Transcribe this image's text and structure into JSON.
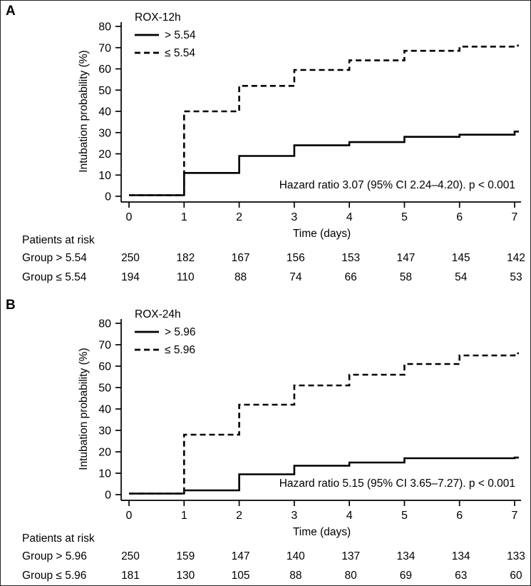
{
  "figure": {
    "background": "#ffffff",
    "ink_color": "#000000",
    "border_color": "#262626",
    "panels": [
      {
        "letter": "A",
        "chart_index": 0
      },
      {
        "letter": "B",
        "chart_index": 1
      }
    ]
  },
  "chart_data": [
    {
      "type": "line",
      "subtype": "step-cumulative-incidence",
      "legend_title": "ROX-12h",
      "xlabel": "Time (days)",
      "ylabel": "Intubation probability (%)",
      "xlim": [
        0,
        7.1
      ],
      "ylim": [
        0,
        80
      ],
      "xticks": [
        0,
        1,
        2,
        3,
        4,
        5,
        6,
        7
      ],
      "yticks": [
        0,
        10,
        20,
        30,
        40,
        50,
        60,
        70,
        80
      ],
      "grid": false,
      "legend_position": "top-left",
      "series": [
        {
          "name": "> 5.54",
          "line_style": "solid",
          "x": [
            0,
            1,
            2,
            3,
            4,
            5,
            6,
            7
          ],
          "y": [
            0.5,
            11,
            19,
            24,
            25.5,
            28,
            29,
            30.5
          ]
        },
        {
          "name": "≤ 5.54",
          "line_style": "dashed",
          "x": [
            0,
            1,
            2,
            3,
            4,
            5,
            6,
            7
          ],
          "y": [
            0.5,
            40,
            52,
            59.5,
            64,
            68.5,
            70.5,
            71
          ]
        }
      ],
      "annotation": "Hazard ratio 3.07 (95% CI 2.24–4.20). p < 0.001",
      "patients_at_risk": {
        "header": "Patients at risk",
        "rows": [
          {
            "label": "Group > 5.54",
            "values": [
              250,
              182,
              167,
              156,
              153,
              147,
              145,
              142
            ]
          },
          {
            "label": "Group ≤ 5.54",
            "values": [
              194,
              110,
              88,
              74,
              66,
              58,
              54,
              53
            ]
          }
        ]
      }
    },
    {
      "type": "line",
      "subtype": "step-cumulative-incidence",
      "legend_title": "ROX-24h",
      "xlabel": "Time (days)",
      "ylabel": "Intubation probability (%)",
      "xlim": [
        0,
        7.1
      ],
      "ylim": [
        0,
        80
      ],
      "xticks": [
        0,
        1,
        2,
        3,
        4,
        5,
        6,
        7
      ],
      "yticks": [
        0,
        10,
        20,
        30,
        40,
        50,
        60,
        70,
        80
      ],
      "grid": false,
      "legend_position": "top-left",
      "series": [
        {
          "name": "> 5.96",
          "line_style": "solid",
          "x": [
            0,
            1,
            2,
            3,
            4,
            5,
            6,
            7
          ],
          "y": [
            0.5,
            2,
            9.5,
            13.5,
            15,
            17,
            17,
            17.3
          ]
        },
        {
          "name": "≤ 5.96",
          "line_style": "dashed",
          "x": [
            0,
            1,
            2,
            3,
            4,
            5,
            6,
            7
          ],
          "y": [
            0.5,
            28,
            42,
            51,
            56,
            61,
            65,
            66
          ]
        }
      ],
      "annotation": "Hazard ratio 5.15 (95% CI 3.65–7.27). p < 0.001",
      "patients_at_risk": {
        "header": "Patients at risk",
        "rows": [
          {
            "label": "Group > 5.96",
            "values": [
              250,
              159,
              147,
              140,
              137,
              134,
              134,
              133
            ]
          },
          {
            "label": "Group ≤ 5.96",
            "values": [
              181,
              130,
              105,
              88,
              80,
              69,
              63,
              60
            ]
          }
        ]
      }
    }
  ]
}
